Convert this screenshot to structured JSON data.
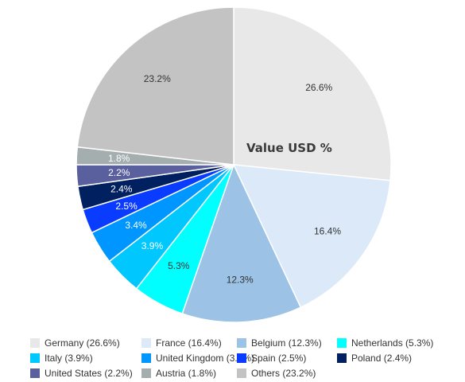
{
  "chart_data": {
    "type": "pie",
    "title": "Value USD %",
    "legend_position": "bottom",
    "slices": [
      {
        "name": "Germany",
        "value": 26.6,
        "label": "26.6%",
        "legend": "Germany (26.6%)",
        "color": "#e8e8e8",
        "label_color": "#333333"
      },
      {
        "name": "France",
        "value": 16.4,
        "label": "16.4%",
        "legend": "France (16.4%)",
        "color": "#dbe9f8",
        "label_color": "#333333"
      },
      {
        "name": "Belgium",
        "value": 12.3,
        "label": "12.3%",
        "legend": "Belgium (12.3%)",
        "color": "#9cc3e6",
        "label_color": "#333333"
      },
      {
        "name": "Netherlands",
        "value": 5.3,
        "label": "5.3%",
        "legend": "Netherlands (5.3%)",
        "color": "#00ffff",
        "label_color": "#333333"
      },
      {
        "name": "Italy",
        "value": 3.9,
        "label": "3.9%",
        "legend": "Italy (3.9%)",
        "color": "#00c8ff",
        "label_color": "#ffffff"
      },
      {
        "name": "United Kingdom",
        "value": 3.4,
        "label": "3.4%",
        "legend": "United Kingdom (3.4%)",
        "color": "#0096ff",
        "label_color": "#ffffff"
      },
      {
        "name": "Spain",
        "value": 2.5,
        "label": "2.5%",
        "legend": "Spain (2.5%)",
        "color": "#0a3cff",
        "label_color": "#ffffff"
      },
      {
        "name": "Poland",
        "value": 2.4,
        "label": "2.4%",
        "legend": "Poland (2.4%)",
        "color": "#002060",
        "label_color": "#ffffff"
      },
      {
        "name": "United States",
        "value": 2.2,
        "label": "2.2%",
        "legend": "United States (2.2%)",
        "color": "#5a5f9e",
        "label_color": "#ffffff"
      },
      {
        "name": "Austria",
        "value": 1.8,
        "label": "1.8%",
        "legend": "Austria (1.8%)",
        "color": "#a5aeae",
        "label_color": "#ffffff"
      },
      {
        "name": "Others",
        "value": 23.2,
        "label": "23.2%",
        "legend": "Others (23.2%)",
        "color": "#c3c3c3",
        "label_color": "#333333"
      }
    ]
  }
}
